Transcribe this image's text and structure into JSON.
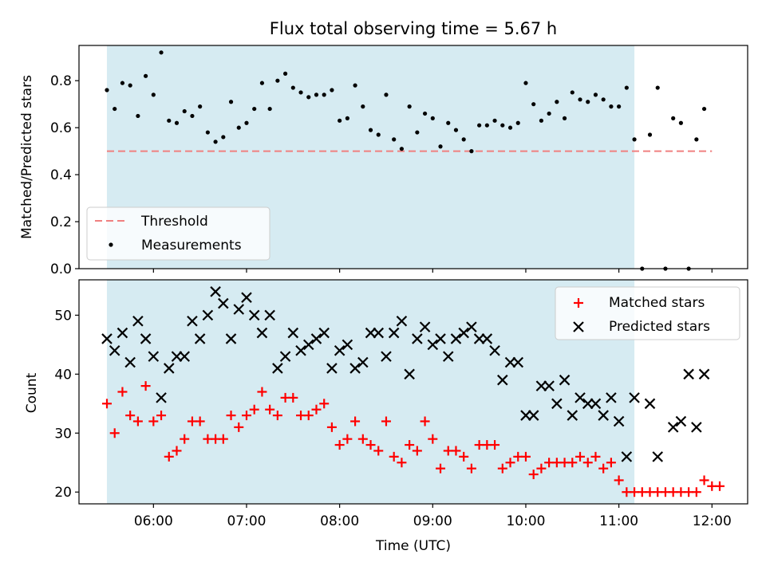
{
  "chart_data": [
    {
      "type": "scatter",
      "title": "Flux total observing time = 5.67 h",
      "xlabel": "",
      "ylabel": "Matched/Predicted stars",
      "ylim": [
        0.0,
        0.95
      ],
      "yticks": [
        "0.0",
        "0.2",
        "0.4",
        "0.6",
        "0.8"
      ],
      "yticks_values": [
        0.0,
        0.2,
        0.4,
        0.6,
        0.8
      ],
      "shaded_span": [
        "05:30",
        "11:10"
      ],
      "shade_color": "#add8e6",
      "legend": {
        "placement": "lower-left",
        "entries": [
          "Threshold",
          "Measurements"
        ]
      },
      "threshold": {
        "name": "Threshold",
        "value": 0.5,
        "x_start": "05:30",
        "x_end": "12:00",
        "color": "#f08080",
        "style": "dashed"
      },
      "series": [
        {
          "name": "Measurements",
          "marker": "dot",
          "color": "#000000",
          "x": [
            "05:30",
            "05:35",
            "05:40",
            "05:45",
            "05:50",
            "05:55",
            "06:00",
            "06:05",
            "06:10",
            "06:15",
            "06:20",
            "06:25",
            "06:30",
            "06:35",
            "06:40",
            "06:45",
            "06:50",
            "06:55",
            "07:00",
            "07:05",
            "07:10",
            "07:15",
            "07:20",
            "07:25",
            "07:30",
            "07:35",
            "07:40",
            "07:45",
            "07:50",
            "07:55",
            "08:00",
            "08:05",
            "08:10",
            "08:15",
            "08:20",
            "08:25",
            "08:30",
            "08:35",
            "08:40",
            "08:45",
            "08:50",
            "08:55",
            "09:00",
            "09:05",
            "09:10",
            "09:15",
            "09:20",
            "09:25",
            "09:30",
            "09:35",
            "09:40",
            "09:45",
            "09:50",
            "09:55",
            "10:00",
            "10:05",
            "10:10",
            "10:15",
            "10:20",
            "10:25",
            "10:30",
            "10:35",
            "10:40",
            "10:45",
            "10:50",
            "10:55",
            "11:00",
            "11:05",
            "11:10",
            "11:15",
            "11:20",
            "11:25",
            "11:30",
            "11:35",
            "11:40",
            "11:45",
            "11:50",
            "11:55"
          ],
          "values": [
            0.76,
            0.68,
            0.79,
            0.78,
            0.65,
            0.82,
            0.74,
            0.92,
            0.63,
            0.62,
            0.67,
            0.65,
            0.69,
            0.58,
            0.54,
            0.56,
            0.71,
            0.6,
            0.62,
            0.68,
            0.79,
            0.68,
            0.8,
            0.83,
            0.77,
            0.75,
            0.73,
            0.74,
            0.74,
            0.76,
            0.63,
            0.64,
            0.78,
            0.69,
            0.59,
            0.57,
            0.74,
            0.55,
            0.51,
            0.69,
            0.58,
            0.66,
            0.64,
            0.52,
            0.62,
            0.59,
            0.55,
            0.5,
            0.61,
            0.61,
            0.63,
            0.61,
            0.6,
            0.62,
            0.79,
            0.7,
            0.63,
            0.66,
            0.71,
            0.64,
            0.75,
            0.72,
            0.71,
            0.74,
            0.72,
            0.69,
            0.69,
            0.77,
            0.55,
            0.0,
            0.57,
            0.77,
            0.0,
            0.64,
            0.62,
            0.0,
            0.55,
            0.68
          ]
        }
      ]
    },
    {
      "type": "scatter",
      "xlabel": "Time (UTC)",
      "ylabel": "Count",
      "ylim": [
        18,
        56
      ],
      "xlim": [
        "05:12",
        "12:23"
      ],
      "xticks": [
        "06:00",
        "07:00",
        "08:00",
        "09:00",
        "10:00",
        "11:00",
        "12:00"
      ],
      "yticks": [
        "20",
        "30",
        "40",
        "50"
      ],
      "yticks_values": [
        20,
        30,
        40,
        50
      ],
      "shaded_span": [
        "05:30",
        "11:10"
      ],
      "shade_color": "#add8e6",
      "legend": {
        "placement": "top-right",
        "entries": [
          "Matched stars",
          "Predicted stars"
        ]
      },
      "series": [
        {
          "name": "Matched stars",
          "marker": "plus",
          "color": "#ff0000",
          "x": [
            "05:30",
            "05:35",
            "05:40",
            "05:45",
            "05:50",
            "05:55",
            "06:00",
            "06:05",
            "06:10",
            "06:15",
            "06:20",
            "06:25",
            "06:30",
            "06:35",
            "06:40",
            "06:45",
            "06:50",
            "06:55",
            "07:00",
            "07:05",
            "07:10",
            "07:15",
            "07:20",
            "07:25",
            "07:30",
            "07:35",
            "07:40",
            "07:45",
            "07:50",
            "07:55",
            "08:00",
            "08:05",
            "08:10",
            "08:15",
            "08:20",
            "08:25",
            "08:30",
            "08:35",
            "08:40",
            "08:45",
            "08:50",
            "08:55",
            "09:00",
            "09:05",
            "09:10",
            "09:15",
            "09:20",
            "09:25",
            "09:30",
            "09:35",
            "09:40",
            "09:45",
            "09:50",
            "09:55",
            "10:00",
            "10:05",
            "10:10",
            "10:15",
            "10:20",
            "10:25",
            "10:30",
            "10:35",
            "10:40",
            "10:45",
            "10:50",
            "10:55",
            "11:00",
            "11:05",
            "11:10",
            "11:15",
            "11:20",
            "11:25",
            "11:30",
            "11:35",
            "11:40",
            "11:45",
            "11:50",
            "11:55",
            "12:00",
            "12:05"
          ],
          "values": [
            35,
            30,
            37,
            33,
            32,
            38,
            32,
            33,
            26,
            27,
            29,
            32,
            32,
            29,
            29,
            29,
            33,
            31,
            33,
            34,
            37,
            34,
            33,
            36,
            36,
            33,
            33,
            34,
            35,
            31,
            28,
            29,
            32,
            29,
            28,
            27,
            32,
            26,
            25,
            28,
            27,
            32,
            29,
            24,
            27,
            27,
            26,
            24,
            28,
            28,
            28,
            24,
            25,
            26,
            26,
            23,
            24,
            25,
            25,
            25,
            25,
            26,
            25,
            26,
            24,
            25,
            22,
            20,
            20,
            20,
            20,
            20,
            20,
            20,
            20,
            20,
            20,
            22,
            21,
            21
          ]
        },
        {
          "name": "Predicted stars",
          "marker": "x",
          "color": "#000000",
          "x": [
            "05:30",
            "05:35",
            "05:40",
            "05:45",
            "05:50",
            "05:55",
            "06:00",
            "06:05",
            "06:10",
            "06:15",
            "06:20",
            "06:25",
            "06:30",
            "06:35",
            "06:40",
            "06:45",
            "06:50",
            "06:55",
            "07:00",
            "07:05",
            "07:10",
            "07:15",
            "07:20",
            "07:25",
            "07:30",
            "07:35",
            "07:40",
            "07:45",
            "07:50",
            "07:55",
            "08:00",
            "08:05",
            "08:10",
            "08:15",
            "08:20",
            "08:25",
            "08:30",
            "08:35",
            "08:40",
            "08:45",
            "08:50",
            "08:55",
            "09:00",
            "09:05",
            "09:10",
            "09:15",
            "09:20",
            "09:25",
            "09:30",
            "09:35",
            "09:40",
            "09:45",
            "09:50",
            "09:55",
            "10:00",
            "10:05",
            "10:10",
            "10:15",
            "10:20",
            "10:25",
            "10:30",
            "10:35",
            "10:40",
            "10:45",
            "10:50",
            "10:55",
            "11:00",
            "11:05",
            "11:10",
            "11:20",
            "11:25",
            "11:35",
            "11:40",
            "11:45",
            "11:50",
            "11:55"
          ],
          "values": [
            46,
            44,
            47,
            42,
            49,
            46,
            43,
            36,
            41,
            43,
            43,
            49,
            46,
            50,
            54,
            52,
            46,
            51,
            53,
            50,
            47,
            50,
            41,
            43,
            47,
            44,
            45,
            46,
            47,
            41,
            44,
            45,
            41,
            42,
            47,
            47,
            43,
            47,
            49,
            40,
            46,
            48,
            45,
            46,
            43,
            46,
            47,
            48,
            46,
            46,
            44,
            39,
            42,
            42,
            33,
            33,
            38,
            38,
            35,
            39,
            33,
            36,
            35,
            35,
            33,
            36,
            32,
            26,
            36,
            35,
            26,
            31,
            32,
            40,
            31,
            40
          ]
        }
      ]
    }
  ]
}
